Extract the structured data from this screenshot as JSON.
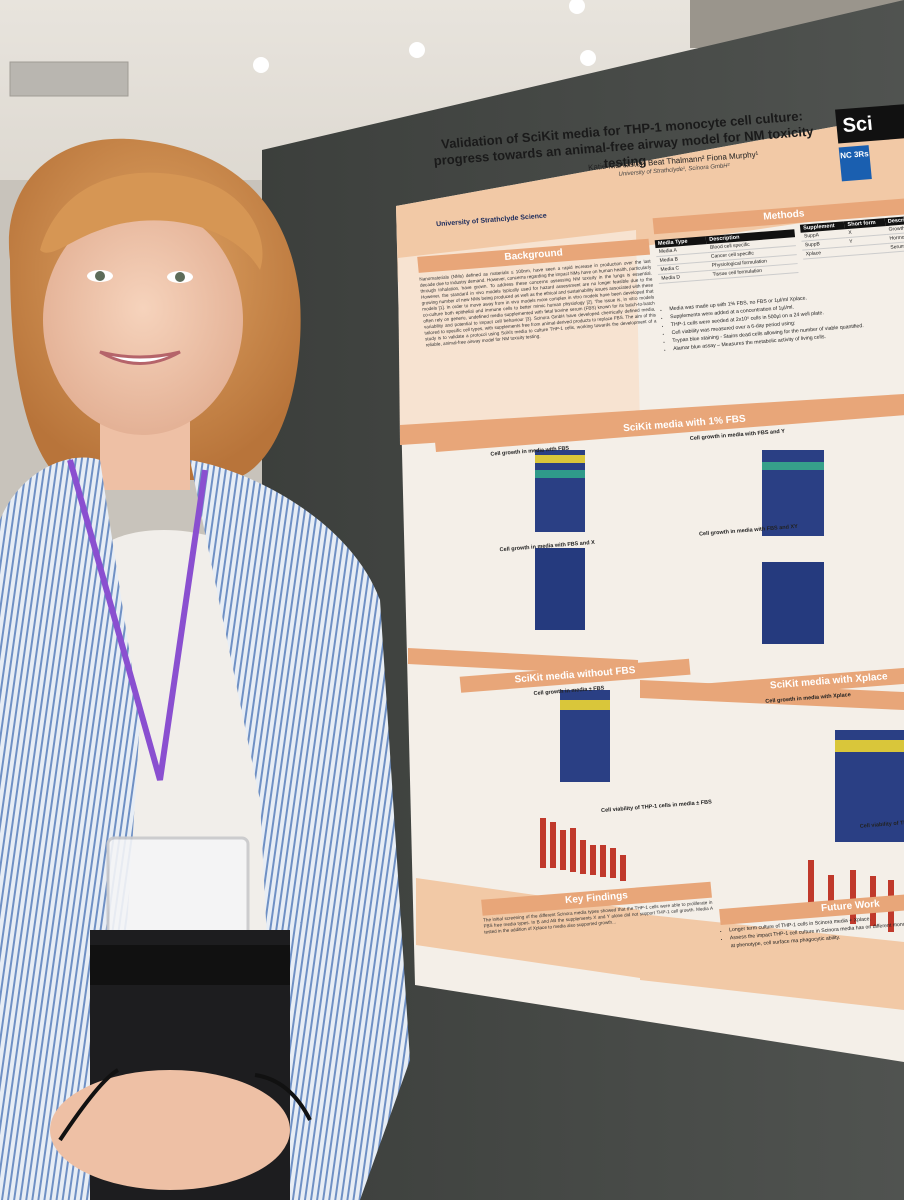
{
  "poster": {
    "title": "Validation of SciKit media for THP-1 monocyte cell culture: progress towards an animal-free airway model for NM toxicity testing",
    "authors": "Katie McAllister¹ Beat Thalmann² Fiona Murphy¹",
    "affiliation": "University of Strathclyde¹, Scinora GmbH²",
    "university_logo_text": "University of Strathclyde Science",
    "brand_logo_text": "Sci",
    "nc3rs_logo_text": "NC 3Rs",
    "sections": {
      "background": "Background",
      "methods": "Methods",
      "scikit_fbs": "SciKit media with 1% FBS",
      "scikit_without_fbs": "SciKit media without FBS",
      "scikit_xplace": "SciKit media with Xplace",
      "key_findings": "Key Findings",
      "future_work": "Future Work"
    },
    "background_text": "Nanomaterials (NMs) defined as materials ≤ 100nm, have seen a rapid increase in production over the last decade due to industry demand. However, concerns regarding the impact NMs have on human health, particularly through inhalation, have grown. To address these concerns assessing NM toxicity in the lungs is essential. However, the standard in vivo models typically used for hazard assessment are no longer feasible due to the growing number of new NMs being produced as well as the ethical and sustainability issues associated with these models [1]. In order to move away from in vivo models more complex in vitro models have been developed that co-culture both epithelial and immune cells to better mimic human physiology [2]. The issue is, in vitro models often rely on generic, undefined media supplemented with fetal bovine serum (FBS) known for its batch-to-batch variability and potential to impact cell behaviour [3]. Scinora GmbH have developed chemically defined media, tailored to specific cell types, with supplements free from animal-derived products to replace FBS. The aim of this study is to validate a protocol using SciKit media to culture THP-1 cells, working towards the development of a reliable, animal-free airway model for NM toxicity testing.",
    "media_table": {
      "headers": [
        "Media Type",
        "Description"
      ],
      "rows": [
        [
          "Media A",
          "Blood cell specific"
        ],
        [
          "Media B",
          "Cancer cell specific"
        ],
        [
          "Media C",
          "Physiological formulation"
        ],
        [
          "Media D",
          "Tissue cell formulation"
        ]
      ]
    },
    "supplement_table": {
      "headers": [
        "Supplement",
        "Short form",
        "Descrip"
      ],
      "rows": [
        [
          "SuppA",
          "X",
          "Growth"
        ],
        [
          "SuppB",
          "Y",
          "Hormon"
        ],
        [
          "Xplace",
          "",
          "Serum r"
        ]
      ]
    },
    "methods_bullets": [
      "Media was made up with 1% FBS, no FBS or 1µl/ml Xplace.",
      "Supplements were added at a concentration of 1µl/ml.",
      "THP-1 cells were seeded at 2x10⁵ cells in 500µl on a 24 well plate.",
      "Cell viability was measured over a 6-day period using:",
      "Trypan blue staining - Stains dead cells allowing for the number of viable quantified.",
      "Alamar blue assay – Measures the metabolic activity of living cells."
    ],
    "plot_titles": [
      "Cell growth in media with FBS",
      "Cell growth in media with FBS and Y",
      "Cell growth in media with FBS and X",
      "Cell growth in media with FBS and XY",
      "Cell growth in media ± FBS",
      "Cell growth in media with Xplace",
      "Cell viability of THP-1 cells in media ± FBS",
      "Cell viability of THP-1 cells in Xplace"
    ],
    "key_findings_text": "The initial screening of the different Scinora media types showed that the THP-1 cells were able to proliferate in FBS free media types. In B and AB the supplements X and Y alone did not support THP-1 cell growth. Media A tested in the addition of Xplace to media also supported growth...",
    "future_work_bullets": [
      "Longer term culture of THP-1 cells in Scinora media + Xplace.",
      "Assess the impact THP-1 cell culture in Scinora media has on different monocytes into macrophages by looking at phenotype, cell surface ma phagocytic ability."
    ]
  }
}
